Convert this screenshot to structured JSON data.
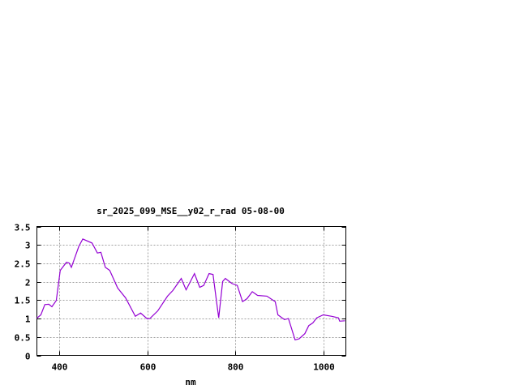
{
  "chart_data": {
    "type": "line",
    "title": "sr_2025_099_MSE__y02_r_rad 05-08-00",
    "xlabel": "nm",
    "ylabel": "",
    "xlim": [
      350,
      1050
    ],
    "ylim": [
      0,
      3.5
    ],
    "xticks": [
      400,
      600,
      800,
      1000
    ],
    "yticks": [
      0,
      0.5,
      1,
      1.5,
      2,
      2.5,
      3,
      3.5
    ],
    "xtick_labels": [
      "400",
      "600",
      "800",
      "1000"
    ],
    "ytick_labels": [
      "0",
      "0.5",
      "1",
      "1.5",
      "2",
      "2.5",
      "3",
      "3.5"
    ],
    "grid": true,
    "line_color": "#9400d3",
    "series": [
      {
        "x": [
          350,
          359,
          368,
          377,
          384,
          394,
          403,
          417,
          423,
          428,
          445,
          454,
          475,
          487,
          495,
          505,
          515,
          533,
          551,
          573,
          585,
          600,
          606,
          624,
          646,
          658,
          677,
          688,
          707,
          719,
          728,
          740,
          749,
          755,
          762,
          771,
          777,
          792,
          804,
          816,
          826,
          838,
          850,
          871,
          890,
          896,
          911,
          920,
          935,
          944,
          957,
          966,
          975,
          984,
          999,
          1018,
          1033,
          1036,
          1048
        ],
        "y": [
          1.01,
          1.1,
          1.38,
          1.39,
          1.32,
          1.49,
          2.31,
          2.53,
          2.51,
          2.39,
          2.96,
          3.16,
          3.05,
          2.78,
          2.8,
          2.39,
          2.31,
          1.83,
          1.56,
          1.06,
          1.15,
          0.99,
          1.0,
          1.21,
          1.61,
          1.76,
          2.09,
          1.78,
          2.22,
          1.85,
          1.9,
          2.22,
          2.2,
          1.65,
          1.02,
          2.01,
          2.09,
          1.95,
          1.9,
          1.46,
          1.54,
          1.73,
          1.63,
          1.61,
          1.46,
          1.1,
          0.97,
          1.0,
          0.42,
          0.45,
          0.59,
          0.81,
          0.88,
          1.02,
          1.1,
          1.06,
          1.02,
          0.93,
          0.94
        ]
      }
    ]
  }
}
